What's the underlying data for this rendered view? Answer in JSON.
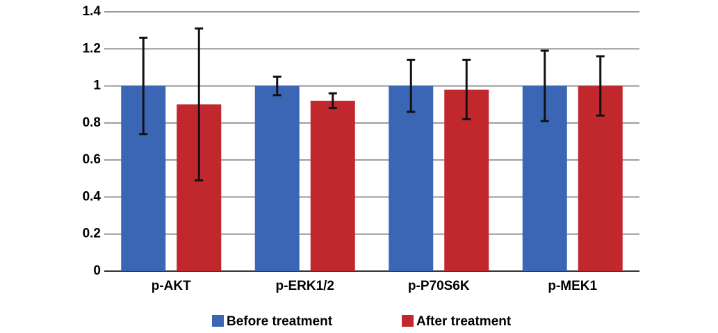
{
  "chart_data": {
    "type": "bar",
    "categories": [
      "p-AKT",
      "p-ERK1/2",
      "p-P70S6K",
      "p-MEK1"
    ],
    "series": [
      {
        "name": "Before treatment",
        "color": "#3a66b5",
        "values": [
          1,
          1,
          1,
          1
        ],
        "errors": [
          0.26,
          0.05,
          0.14,
          0.19
        ]
      },
      {
        "name": "After treatment",
        "color": "#c0282e",
        "values": [
          0.9,
          0.92,
          0.98,
          1
        ],
        "errors": [
          0.41,
          0.04,
          0.16,
          0.16
        ]
      }
    ],
    "ylim": [
      0,
      1.4
    ],
    "yticks": [
      0,
      0.2,
      0.4,
      0.6,
      0.8,
      1,
      1.2,
      1.4
    ],
    "grid": true,
    "legend": "bottom"
  }
}
